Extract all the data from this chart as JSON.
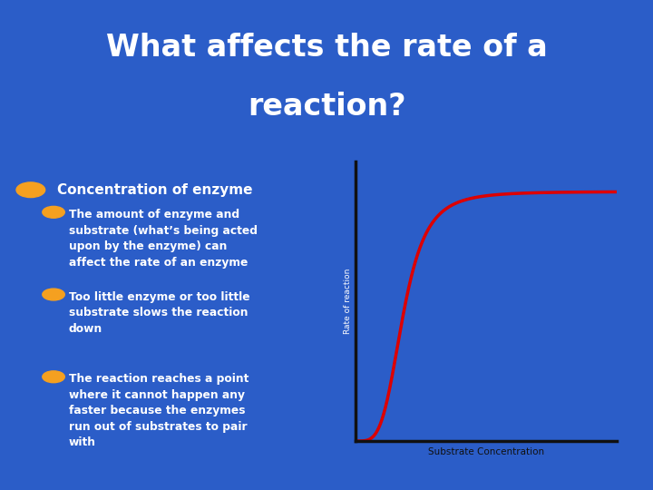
{
  "title_line1": "What affects the rate of a",
  "title_line2": "reaction?",
  "title_bg_color": "#2255AA",
  "body_bg_color": "#2B5DC8",
  "title_text_color": "#FFFFFF",
  "body_text_color": "#FFFFFF",
  "separator_color_top": "#7099DD",
  "separator_color_bot": "#8AADEE",
  "bullet_color_l1": "#F5A020",
  "bullet_color_l2": "#F5A020",
  "l1_text": "Concentration of enzyme",
  "l2_texts": [
    "The amount of enzyme and\nsubstrate (what’s being acted\nupon by the enzyme) can\naffect the rate of an enzyme",
    "Too little enzyme or too little\nsubstrate slows the reaction\ndown",
    "The reaction reaches a point\nwhere it cannot happen any\nfaster because the enzymes\nrun out of substrates to pair\nwith"
  ],
  "graph_axes_color": "#111111",
  "graph_line_color": "#DD0000",
  "graph_ylabel": "Rate of reaction",
  "graph_xlabel": "Substrate Concentration",
  "graph_xlabel_color": "#111111",
  "graph_ylabel_color": "#FFFFFF"
}
